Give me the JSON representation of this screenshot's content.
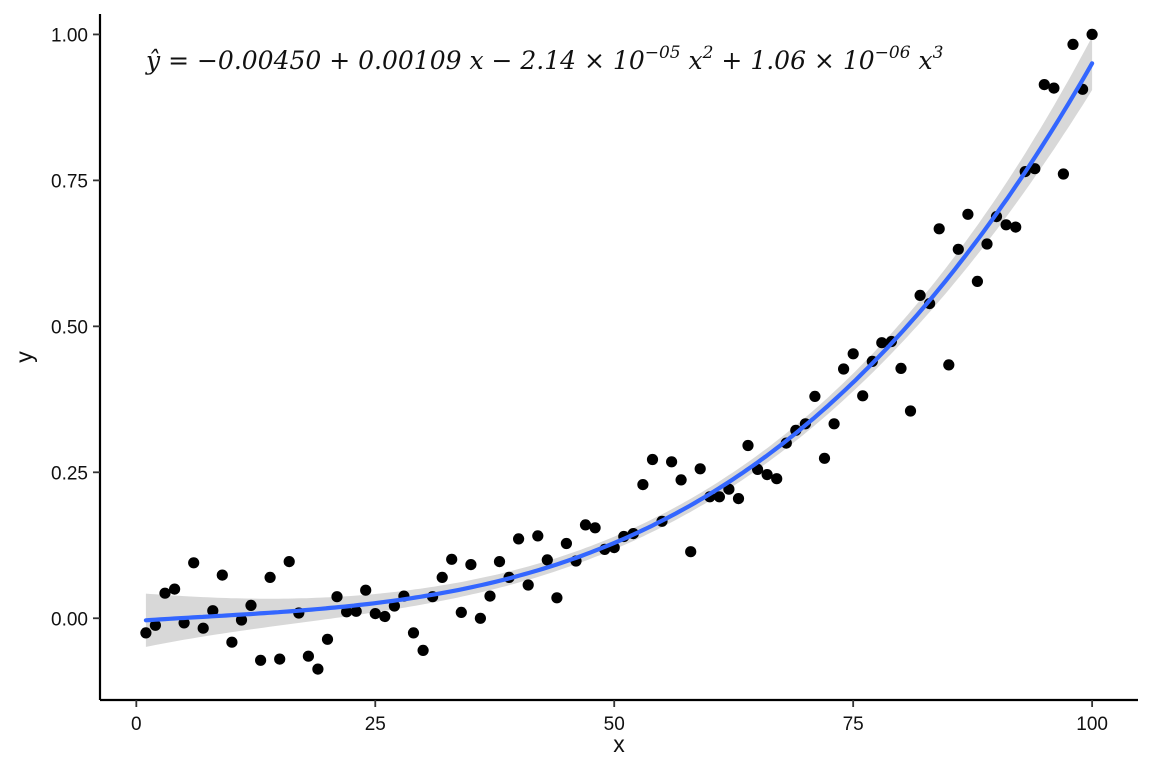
{
  "chart_data": {
    "type": "scatter",
    "title": "",
    "xlabel": "x",
    "ylabel": "y",
    "xlim": [
      -3.8,
      104.8
    ],
    "ylim": [
      -0.14,
      1.035
    ],
    "x_ticks": [
      0,
      25,
      50,
      75,
      100
    ],
    "x_tick_labels": [
      "0",
      "25",
      "50",
      "75",
      "100"
    ],
    "y_ticks": [
      0,
      0.25,
      0.5,
      0.75,
      1.0
    ],
    "y_tick_labels": [
      "0.00",
      "0.25",
      "0.50",
      "0.75",
      "1.00"
    ],
    "grid": false,
    "legend": "none",
    "annotation": {
      "parts": [
        "ŷ = −0.00450 + 0.00109 x − 2.14 × 10",
        "−05",
        " x",
        "2",
        " + 1.06 × 10",
        "−06",
        " x",
        "3"
      ],
      "position": "top-left"
    },
    "fit": {
      "method": "cubic polynomial",
      "coefficients": [
        -0.0045,
        0.00109,
        -2.14e-05,
        1.06e-06
      ],
      "x_range": [
        1,
        100
      ],
      "line_color": "#3366FF",
      "band_color": "#BEBEBE"
    },
    "points_color": "#000000",
    "points": {
      "x": [
        1,
        2,
        3,
        4,
        5,
        6,
        7,
        8,
        9,
        10,
        11,
        12,
        13,
        14,
        15,
        16,
        17,
        18,
        19,
        20,
        21,
        22,
        23,
        24,
        25,
        26,
        27,
        28,
        29,
        30,
        31,
        32,
        33,
        34,
        35,
        36,
        37,
        38,
        39,
        40,
        41,
        42,
        43,
        44,
        45,
        46,
        47,
        48,
        49,
        50,
        51,
        52,
        53,
        54,
        55,
        56,
        57,
        58,
        59,
        60,
        61,
        62,
        63,
        64,
        65,
        66,
        67,
        68,
        69,
        70,
        71,
        72,
        73,
        74,
        75,
        76,
        77,
        78,
        79,
        80,
        81,
        82,
        83,
        84,
        85,
        86,
        87,
        88,
        89,
        90,
        91,
        92,
        93,
        94,
        95,
        96,
        97,
        98,
        99,
        100
      ],
      "y": [
        -0.025,
        -0.012,
        0.043,
        0.05,
        -0.008,
        0.095,
        -0.017,
        0.013,
        0.074,
        -0.041,
        -0.003,
        0.022,
        -0.072,
        0.07,
        -0.07,
        0.097,
        0.009,
        -0.065,
        -0.087,
        -0.036,
        0.037,
        0.011,
        0.012,
        0.048,
        0.008,
        0.003,
        0.021,
        0.038,
        -0.025,
        -0.055,
        0.037,
        0.07,
        0.101,
        0.01,
        0.092,
        0.0,
        0.038,
        0.097,
        0.07,
        0.136,
        0.057,
        0.141,
        0.1,
        0.035,
        0.128,
        0.098,
        0.16,
        0.155,
        0.118,
        0.121,
        0.14,
        0.145,
        0.229,
        0.272,
        0.166,
        0.268,
        0.237,
        0.114,
        0.256,
        0.208,
        0.208,
        0.221,
        0.205,
        0.296,
        0.255,
        0.246,
        0.239,
        0.3,
        0.322,
        0.333,
        0.38,
        0.274,
        0.333,
        0.427,
        0.453,
        0.381,
        0.44,
        0.472,
        0.474,
        0.428,
        0.355,
        0.553,
        0.539,
        0.667,
        0.434,
        0.632,
        0.692,
        0.577,
        0.641,
        0.688,
        0.674,
        0.67,
        0.765,
        0.77,
        0.914,
        0.908,
        0.761,
        0.983,
        0.906,
        1.0
      ]
    }
  }
}
